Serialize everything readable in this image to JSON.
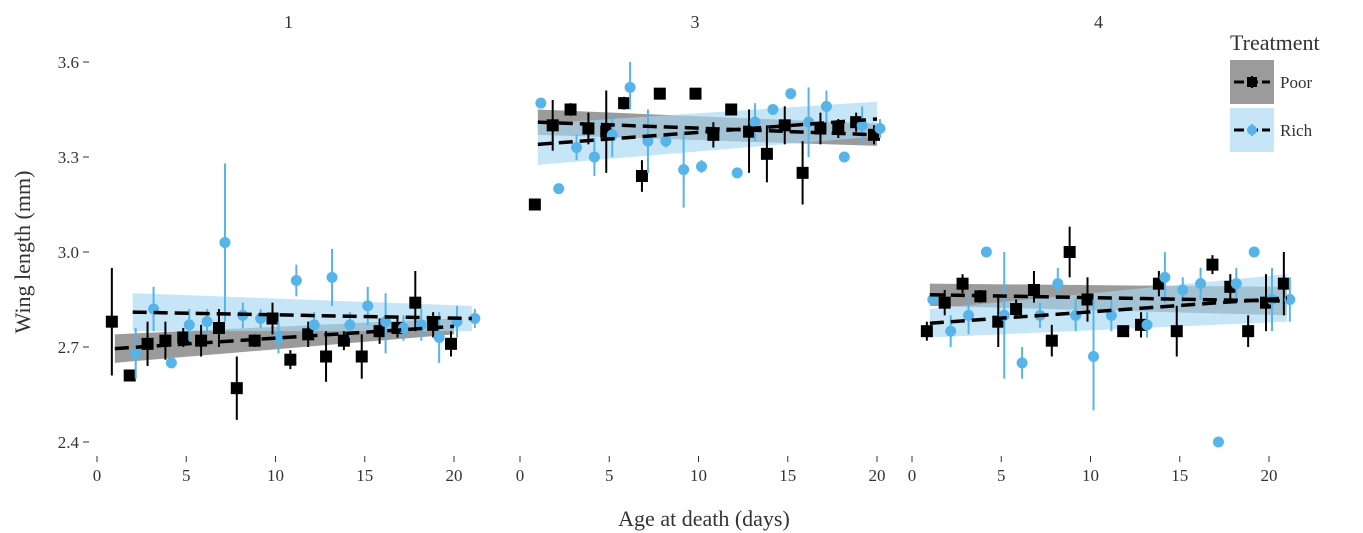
{
  "chart_data": {
    "type": "scatter",
    "facet_variable": "Generation",
    "xlabel": "Age at death (days)",
    "ylabel": "Wing length (mm)",
    "xlim": [
      0,
      21.5
    ],
    "ylim": [
      2.36,
      3.64
    ],
    "x_ticks": [
      0,
      5,
      10,
      15,
      20
    ],
    "y_ticks": [
      2.4,
      2.7,
      3.0,
      3.3,
      3.6
    ],
    "y_tick_labels": [
      "2.4",
      "2.7",
      "3.0",
      "3.3",
      "3.6"
    ],
    "grid": false,
    "legend": {
      "title": "Treatment",
      "position": "right",
      "entries": [
        "Poor",
        "Rich"
      ]
    },
    "colors": {
      "Poor": "#000000",
      "Rich": "#56B4E9",
      "Poor_band": "#8a8a8a",
      "Rich_band": "#a8d8f4"
    },
    "markers": {
      "Poor": "square",
      "Rich": "circle"
    },
    "facets": [
      {
        "label": "1",
        "fits": {
          "Poor": {
            "x": [
              1,
              20
            ],
            "y": [
              2.695,
              2.765
            ],
            "band": [
              0.045,
              0.025
            ]
          },
          "Rich": {
            "x": [
              2,
              21
            ],
            "y": [
              2.81,
              2.79
            ],
            "band": [
              0.06,
              0.04
            ]
          }
        },
        "points": {
          "Poor": [
            {
              "x": 1,
              "y": 2.78,
              "lo": 2.61,
              "hi": 2.95
            },
            {
              "x": 2,
              "y": 2.61,
              "lo": 2.6,
              "hi": 2.62
            },
            {
              "x": 3,
              "y": 2.71,
              "lo": 2.64,
              "hi": 2.78
            },
            {
              "x": 4,
              "y": 2.72,
              "lo": 2.66,
              "hi": 2.78
            },
            {
              "x": 5,
              "y": 2.73,
              "lo": 2.7,
              "hi": 2.76
            },
            {
              "x": 6,
              "y": 2.72,
              "lo": 2.67,
              "hi": 2.77
            },
            {
              "x": 7,
              "y": 2.76,
              "lo": 2.7,
              "hi": 2.82
            },
            {
              "x": 8,
              "y": 2.57,
              "lo": 2.47,
              "hi": 2.67
            },
            {
              "x": 9,
              "y": 2.72,
              "lo": 2.7,
              "hi": 2.74
            },
            {
              "x": 10,
              "y": 2.79,
              "lo": 2.74,
              "hi": 2.84
            },
            {
              "x": 11,
              "y": 2.66,
              "lo": 2.63,
              "hi": 2.69
            },
            {
              "x": 12,
              "y": 2.74,
              "lo": 2.7,
              "hi": 2.78
            },
            {
              "x": 13,
              "y": 2.67,
              "lo": 2.59,
              "hi": 2.75
            },
            {
              "x": 14,
              "y": 2.72,
              "lo": 2.69,
              "hi": 2.75
            },
            {
              "x": 15,
              "y": 2.67,
              "lo": 2.6,
              "hi": 2.74
            },
            {
              "x": 16,
              "y": 2.75,
              "lo": 2.71,
              "hi": 2.79
            },
            {
              "x": 17,
              "y": 2.76,
              "lo": 2.73,
              "hi": 2.79
            },
            {
              "x": 18,
              "y": 2.84,
              "lo": 2.75,
              "hi": 2.94
            },
            {
              "x": 19,
              "y": 2.77,
              "lo": 2.73,
              "hi": 2.81
            },
            {
              "x": 20,
              "y": 2.71,
              "lo": 2.67,
              "hi": 2.75
            }
          ],
          "Rich": [
            {
              "x": 2,
              "y": 2.68,
              "lo": 2.6,
              "hi": 2.76
            },
            {
              "x": 3,
              "y": 2.82,
              "lo": 2.75,
              "hi": 2.89
            },
            {
              "x": 4,
              "y": 2.65,
              "lo": 2.65,
              "hi": 2.65
            },
            {
              "x": 5,
              "y": 2.77,
              "lo": 2.72,
              "hi": 2.82
            },
            {
              "x": 6,
              "y": 2.78,
              "lo": 2.74,
              "hi": 2.82
            },
            {
              "x": 7,
              "y": 3.03,
              "lo": 2.78,
              "hi": 3.28
            },
            {
              "x": 8,
              "y": 2.8,
              "lo": 2.76,
              "hi": 2.84
            },
            {
              "x": 9,
              "y": 2.79,
              "lo": 2.76,
              "hi": 2.82
            },
            {
              "x": 10,
              "y": 2.73,
              "lo": 2.68,
              "hi": 2.78
            },
            {
              "x": 11,
              "y": 2.91,
              "lo": 2.86,
              "hi": 2.96
            },
            {
              "x": 12,
              "y": 2.77,
              "lo": 2.73,
              "hi": 2.81
            },
            {
              "x": 13,
              "y": 2.92,
              "lo": 2.83,
              "hi": 3.01
            },
            {
              "x": 14,
              "y": 2.77,
              "lo": 2.73,
              "hi": 2.81
            },
            {
              "x": 15,
              "y": 2.83,
              "lo": 2.77,
              "hi": 2.89
            },
            {
              "x": 16,
              "y": 2.78,
              "lo": 2.68,
              "hi": 2.87
            },
            {
              "x": 17,
              "y": 2.76,
              "lo": 2.72,
              "hi": 2.8
            },
            {
              "x": 18,
              "y": 2.77,
              "lo": 2.72,
              "hi": 2.82
            },
            {
              "x": 19,
              "y": 2.73,
              "lo": 2.65,
              "hi": 2.81
            },
            {
              "x": 20,
              "y": 2.78,
              "lo": 2.73,
              "hi": 2.83
            },
            {
              "x": 21,
              "y": 2.79,
              "lo": 2.76,
              "hi": 2.82
            }
          ]
        }
      },
      {
        "label": "3",
        "fits": {
          "Poor": {
            "x": [
              1,
              20
            ],
            "y": [
              3.41,
              3.37
            ],
            "band": [
              0.04,
              0.035
            ]
          },
          "Rich": {
            "x": [
              1,
              20
            ],
            "y": [
              3.34,
              3.42
            ],
            "band": [
              0.065,
              0.055
            ]
          }
        },
        "points": {
          "Poor": [
            {
              "x": 1,
              "y": 3.15,
              "lo": 3.15,
              "hi": 3.15
            },
            {
              "x": 2,
              "y": 3.4,
              "lo": 3.32,
              "hi": 3.48
            },
            {
              "x": 3,
              "y": 3.45,
              "lo": 3.43,
              "hi": 3.47
            },
            {
              "x": 4,
              "y": 3.39,
              "lo": 3.34,
              "hi": 3.44
            },
            {
              "x": 5,
              "y": 3.38,
              "lo": 3.25,
              "hi": 3.51
            },
            {
              "x": 6,
              "y": 3.47,
              "lo": 3.45,
              "hi": 3.49
            },
            {
              "x": 7,
              "y": 3.24,
              "lo": 3.19,
              "hi": 3.29
            },
            {
              "x": 8,
              "y": 3.5,
              "lo": 3.5,
              "hi": 3.5
            },
            {
              "x": 10,
              "y": 3.5,
              "lo": 3.5,
              "hi": 3.5
            },
            {
              "x": 11,
              "y": 3.37,
              "lo": 3.33,
              "hi": 3.41
            },
            {
              "x": 12,
              "y": 3.45,
              "lo": 3.45,
              "hi": 3.45
            },
            {
              "x": 13,
              "y": 3.38,
              "lo": 3.25,
              "hi": 3.45
            },
            {
              "x": 14,
              "y": 3.31,
              "lo": 3.22,
              "hi": 3.4
            },
            {
              "x": 15,
              "y": 3.4,
              "lo": 3.34,
              "hi": 3.46
            },
            {
              "x": 16,
              "y": 3.25,
              "lo": 3.15,
              "hi": 3.35
            },
            {
              "x": 17,
              "y": 3.39,
              "lo": 3.34,
              "hi": 3.44
            },
            {
              "x": 18,
              "y": 3.39,
              "lo": 3.36,
              "hi": 3.42
            },
            {
              "x": 19,
              "y": 3.41,
              "lo": 3.38,
              "hi": 3.44
            },
            {
              "x": 20,
              "y": 3.37,
              "lo": 3.34,
              "hi": 3.4
            }
          ],
          "Rich": [
            {
              "x": 1,
              "y": 3.47,
              "lo": 3.46,
              "hi": 3.48
            },
            {
              "x": 2,
              "y": 3.2,
              "lo": 3.2,
              "hi": 3.2
            },
            {
              "x": 3,
              "y": 3.33,
              "lo": 3.29,
              "hi": 3.37
            },
            {
              "x": 4,
              "y": 3.3,
              "lo": 3.24,
              "hi": 3.36
            },
            {
              "x": 5,
              "y": 3.37,
              "lo": 3.3,
              "hi": 3.44
            },
            {
              "x": 6,
              "y": 3.52,
              "lo": 3.45,
              "hi": 3.6
            },
            {
              "x": 7,
              "y": 3.35,
              "lo": 3.25,
              "hi": 3.45
            },
            {
              "x": 8,
              "y": 3.35,
              "lo": 3.33,
              "hi": 3.37
            },
            {
              "x": 9,
              "y": 3.26,
              "lo": 3.14,
              "hi": 3.38
            },
            {
              "x": 10,
              "y": 3.27,
              "lo": 3.25,
              "hi": 3.29
            },
            {
              "x": 12,
              "y": 3.25,
              "lo": 3.25,
              "hi": 3.25
            },
            {
              "x": 13,
              "y": 3.41,
              "lo": 3.35,
              "hi": 3.47
            },
            {
              "x": 14,
              "y": 3.45,
              "lo": 3.45,
              "hi": 3.45
            },
            {
              "x": 15,
              "y": 3.5,
              "lo": 3.5,
              "hi": 3.5
            },
            {
              "x": 16,
              "y": 3.41,
              "lo": 3.3,
              "hi": 3.52
            },
            {
              "x": 17,
              "y": 3.46,
              "lo": 3.41,
              "hi": 3.51
            },
            {
              "x": 18,
              "y": 3.3,
              "lo": 3.3,
              "hi": 3.3
            },
            {
              "x": 19,
              "y": 3.4,
              "lo": 3.34,
              "hi": 3.46
            },
            {
              "x": 20,
              "y": 3.39,
              "lo": 3.36,
              "hi": 3.42
            }
          ]
        }
      },
      {
        "label": "4",
        "fits": {
          "Poor": {
            "x": [
              1,
              21
            ],
            "y": [
              2.865,
              2.845
            ],
            "band": [
              0.035,
              0.045
            ]
          },
          "Rich": {
            "x": [
              1,
              21
            ],
            "y": [
              2.775,
              2.855
            ],
            "band": [
              0.045,
              0.075
            ]
          }
        },
        "points": {
          "Poor": [
            {
              "x": 1,
              "y": 2.75,
              "lo": 2.72,
              "hi": 2.78
            },
            {
              "x": 2,
              "y": 2.84,
              "lo": 2.8,
              "hi": 2.88
            },
            {
              "x": 3,
              "y": 2.9,
              "lo": 2.87,
              "hi": 2.93
            },
            {
              "x": 4,
              "y": 2.86,
              "lo": 2.84,
              "hi": 2.88
            },
            {
              "x": 5,
              "y": 2.78,
              "lo": 2.7,
              "hi": 2.86
            },
            {
              "x": 6,
              "y": 2.82,
              "lo": 2.79,
              "hi": 2.85
            },
            {
              "x": 7,
              "y": 2.88,
              "lo": 2.84,
              "hi": 2.94
            },
            {
              "x": 8,
              "y": 2.72,
              "lo": 2.67,
              "hi": 2.77
            },
            {
              "x": 9,
              "y": 3.0,
              "lo": 2.92,
              "hi": 3.08
            },
            {
              "x": 10,
              "y": 2.85,
              "lo": 2.78,
              "hi": 2.92
            },
            {
              "x": 12,
              "y": 2.75,
              "lo": 2.75,
              "hi": 2.75
            },
            {
              "x": 13,
              "y": 2.77,
              "lo": 2.73,
              "hi": 2.81
            },
            {
              "x": 14,
              "y": 2.9,
              "lo": 2.86,
              "hi": 2.94
            },
            {
              "x": 15,
              "y": 2.75,
              "lo": 2.67,
              "hi": 2.83
            },
            {
              "x": 17,
              "y": 2.96,
              "lo": 2.93,
              "hi": 2.99
            },
            {
              "x": 18,
              "y": 2.89,
              "lo": 2.85,
              "hi": 2.93
            },
            {
              "x": 19,
              "y": 2.75,
              "lo": 2.7,
              "hi": 2.8
            },
            {
              "x": 20,
              "y": 2.84,
              "lo": 2.75,
              "hi": 2.93
            },
            {
              "x": 21,
              "y": 2.9,
              "lo": 2.8,
              "hi": 3.0
            }
          ],
          "Rich": [
            {
              "x": 1,
              "y": 2.85,
              "lo": 2.85,
              "hi": 2.85
            },
            {
              "x": 2,
              "y": 2.75,
              "lo": 2.7,
              "hi": 2.8
            },
            {
              "x": 3,
              "y": 2.8,
              "lo": 2.74,
              "hi": 2.86
            },
            {
              "x": 4,
              "y": 3.0,
              "lo": 3.0,
              "hi": 3.0
            },
            {
              "x": 5,
              "y": 2.8,
              "lo": 2.6,
              "hi": 3.0
            },
            {
              "x": 6,
              "y": 2.65,
              "lo": 2.6,
              "hi": 2.7
            },
            {
              "x": 7,
              "y": 2.8,
              "lo": 2.76,
              "hi": 2.84
            },
            {
              "x": 8,
              "y": 2.9,
              "lo": 2.85,
              "hi": 2.95
            },
            {
              "x": 9,
              "y": 2.8,
              "lo": 2.75,
              "hi": 2.85
            },
            {
              "x": 10,
              "y": 2.67,
              "lo": 2.5,
              "hi": 2.85
            },
            {
              "x": 11,
              "y": 2.8,
              "lo": 2.75,
              "hi": 2.85
            },
            {
              "x": 13,
              "y": 2.77,
              "lo": 2.73,
              "hi": 2.81
            },
            {
              "x": 14,
              "y": 2.92,
              "lo": 2.84,
              "hi": 3.0
            },
            {
              "x": 15,
              "y": 2.88,
              "lo": 2.84,
              "hi": 2.92
            },
            {
              "x": 16,
              "y": 2.9,
              "lo": 2.85,
              "hi": 2.95
            },
            {
              "x": 17,
              "y": 2.4,
              "lo": 2.4,
              "hi": 2.4
            },
            {
              "x": 18,
              "y": 2.9,
              "lo": 2.85,
              "hi": 2.95
            },
            {
              "x": 19,
              "y": 3.0,
              "lo": 3.0,
              "hi": 3.0
            },
            {
              "x": 20,
              "y": 2.85,
              "lo": 2.75,
              "hi": 2.95
            },
            {
              "x": 21,
              "y": 2.85,
              "lo": 2.78,
              "hi": 2.92
            }
          ]
        }
      }
    ]
  }
}
